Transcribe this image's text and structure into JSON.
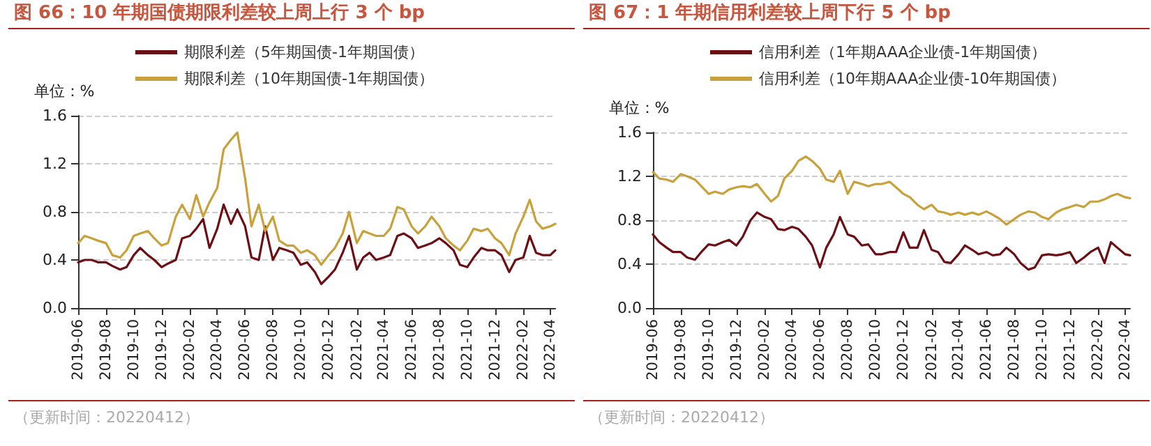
{
  "chart_data": [
    {
      "type": "line",
      "title": "图 66：10 年期国债期限利差较上周上行 3 个 bp",
      "ylabel": "单位：%",
      "annotations": [
        "（更新时间：20220412）"
      ],
      "x": [
        "2019-06-01",
        "2019-06-15",
        "2019-07-01",
        "2019-07-15",
        "2019-08-01",
        "2019-08-15",
        "2019-09-01",
        "2019-09-15",
        "2019-10-01",
        "2019-10-15",
        "2019-11-01",
        "2019-11-15",
        "2019-12-01",
        "2019-12-15",
        "2020-01-01",
        "2020-01-15",
        "2020-02-01",
        "2020-02-15",
        "2020-03-01",
        "2020-03-15",
        "2020-04-01",
        "2020-04-15",
        "2020-05-01",
        "2020-05-15",
        "2020-06-01",
        "2020-06-15",
        "2020-07-01",
        "2020-07-15",
        "2020-08-01",
        "2020-08-15",
        "2020-09-01",
        "2020-09-15",
        "2020-10-01",
        "2020-10-15",
        "2020-11-01",
        "2020-11-15",
        "2020-12-01",
        "2020-12-15",
        "2021-01-01",
        "2021-01-15",
        "2021-02-01",
        "2021-02-15",
        "2021-03-01",
        "2021-03-15",
        "2021-04-01",
        "2021-04-15",
        "2021-05-01",
        "2021-05-15",
        "2021-06-01",
        "2021-06-15",
        "2021-07-01",
        "2021-07-15",
        "2021-08-01",
        "2021-08-15",
        "2021-09-01",
        "2021-09-15",
        "2021-10-01",
        "2021-10-15",
        "2021-11-01",
        "2021-11-15",
        "2021-12-01",
        "2021-12-15",
        "2022-01-01",
        "2022-01-15",
        "2022-02-01",
        "2022-02-15",
        "2022-03-01",
        "2022-03-15",
        "2022-04-01",
        "2022-04-12"
      ],
      "series": [
        {
          "name": "期限利差（5年期国债-1年期国债）",
          "color": "#6b0f14",
          "values": [
            0.38,
            0.4,
            0.4,
            0.38,
            0.38,
            0.35,
            0.32,
            0.34,
            0.44,
            0.5,
            0.44,
            0.4,
            0.34,
            0.37,
            0.4,
            0.58,
            0.6,
            0.66,
            0.74,
            0.5,
            0.66,
            0.86,
            0.7,
            0.82,
            0.68,
            0.42,
            0.4,
            0.68,
            0.4,
            0.5,
            0.48,
            0.46,
            0.36,
            0.38,
            0.3,
            0.2,
            0.26,
            0.32,
            0.46,
            0.6,
            0.32,
            0.42,
            0.46,
            0.4,
            0.42,
            0.44,
            0.6,
            0.62,
            0.58,
            0.5,
            0.52,
            0.54,
            0.58,
            0.54,
            0.48,
            0.36,
            0.34,
            0.42,
            0.5,
            0.48,
            0.48,
            0.44,
            0.3,
            0.4,
            0.42,
            0.6,
            0.46,
            0.44,
            0.44,
            0.48
          ]
        },
        {
          "name": "期限利差（10年期国债-1年期国债）",
          "color": "#c9a13b",
          "values": [
            0.54,
            0.6,
            0.58,
            0.56,
            0.54,
            0.44,
            0.42,
            0.48,
            0.6,
            0.62,
            0.64,
            0.58,
            0.52,
            0.54,
            0.76,
            0.86,
            0.74,
            0.94,
            0.76,
            0.88,
            1.0,
            1.32,
            1.4,
            1.46,
            1.08,
            0.68,
            0.86,
            0.64,
            0.76,
            0.56,
            0.52,
            0.52,
            0.46,
            0.48,
            0.44,
            0.36,
            0.44,
            0.5,
            0.62,
            0.8,
            0.54,
            0.64,
            0.62,
            0.6,
            0.6,
            0.66,
            0.84,
            0.82,
            0.68,
            0.62,
            0.68,
            0.76,
            0.68,
            0.58,
            0.52,
            0.48,
            0.56,
            0.66,
            0.64,
            0.66,
            0.58,
            0.54,
            0.44,
            0.62,
            0.76,
            0.9,
            0.72,
            0.66,
            0.68,
            0.7
          ]
        }
      ],
      "xlim": [
        "2019-06-01",
        "2022-04-12"
      ],
      "xticks": [
        "2019-06",
        "2019-08",
        "2019-10",
        "2019-12",
        "2020-02",
        "2020-04",
        "2020-06",
        "2020-08",
        "2020-10",
        "2020-12",
        "2021-02",
        "2021-04",
        "2021-06",
        "2021-08",
        "2021-10",
        "2021-12",
        "2022-02",
        "2022-04"
      ],
      "ylim": [
        0,
        1.6
      ],
      "yticks": [
        {
          "value": 0,
          "label": "0.0"
        },
        0.4,
        0.8,
        1.2,
        1.6
      ],
      "grid": "y",
      "legend": "top",
      "marker": "none",
      "line_style": "solid"
    },
    {
      "type": "line",
      "title": "图 67：1 年期信用利差较上周下行 5 个 bp",
      "ylabel": "单位：%",
      "annotations": [
        "（更新时间：20220412）"
      ],
      "x": [
        "2019-06-01",
        "2019-06-15",
        "2019-07-01",
        "2019-07-15",
        "2019-08-01",
        "2019-08-15",
        "2019-09-01",
        "2019-09-15",
        "2019-10-01",
        "2019-10-15",
        "2019-11-01",
        "2019-11-15",
        "2019-12-01",
        "2019-12-15",
        "2020-01-01",
        "2020-01-15",
        "2020-02-01",
        "2020-02-15",
        "2020-03-01",
        "2020-03-15",
        "2020-04-01",
        "2020-04-15",
        "2020-05-01",
        "2020-05-15",
        "2020-06-01",
        "2020-06-15",
        "2020-07-01",
        "2020-07-15",
        "2020-08-01",
        "2020-08-15",
        "2020-09-01",
        "2020-09-15",
        "2020-10-01",
        "2020-10-15",
        "2020-11-01",
        "2020-11-15",
        "2020-12-01",
        "2020-12-15",
        "2021-01-01",
        "2021-01-15",
        "2021-02-01",
        "2021-02-15",
        "2021-03-01",
        "2021-03-15",
        "2021-04-01",
        "2021-04-15",
        "2021-05-01",
        "2021-05-15",
        "2021-06-01",
        "2021-06-15",
        "2021-07-01",
        "2021-07-15",
        "2021-08-01",
        "2021-08-15",
        "2021-09-01",
        "2021-09-15",
        "2021-10-01",
        "2021-10-15",
        "2021-11-01",
        "2021-11-15",
        "2021-12-01",
        "2021-12-15",
        "2022-01-01",
        "2022-01-15",
        "2022-02-01",
        "2022-02-15",
        "2022-03-01",
        "2022-03-15",
        "2022-04-01",
        "2022-04-12"
      ],
      "series": [
        {
          "name": "信用利差（1年期AAA企业债-1年期国债）",
          "color": "#6b0f14",
          "values": [
            0.67,
            0.6,
            0.55,
            0.51,
            0.51,
            0.46,
            0.44,
            0.51,
            0.58,
            0.57,
            0.6,
            0.62,
            0.57,
            0.65,
            0.8,
            0.87,
            0.83,
            0.81,
            0.72,
            0.71,
            0.74,
            0.72,
            0.65,
            0.57,
            0.37,
            0.55,
            0.67,
            0.83,
            0.67,
            0.65,
            0.57,
            0.58,
            0.49,
            0.49,
            0.51,
            0.51,
            0.69,
            0.55,
            0.55,
            0.71,
            0.53,
            0.51,
            0.42,
            0.41,
            0.49,
            0.57,
            0.53,
            0.49,
            0.51,
            0.48,
            0.49,
            0.55,
            0.49,
            0.41,
            0.35,
            0.37,
            0.48,
            0.49,
            0.48,
            0.49,
            0.51,
            0.41,
            0.46,
            0.51,
            0.55,
            0.41,
            0.6,
            0.55,
            0.49,
            0.48
          ]
        },
        {
          "name": "信用利差（10年期AAA企业债-10年期国债）",
          "color": "#c9a13b",
          "values": [
            1.24,
            1.18,
            1.17,
            1.15,
            1.22,
            1.2,
            1.17,
            1.11,
            1.04,
            1.06,
            1.04,
            1.08,
            1.1,
            1.11,
            1.1,
            1.13,
            1.04,
            0.97,
            1.02,
            1.18,
            1.25,
            1.34,
            1.38,
            1.34,
            1.27,
            1.17,
            1.15,
            1.25,
            1.04,
            1.15,
            1.13,
            1.11,
            1.13,
            1.13,
            1.15,
            1.1,
            1.04,
            1.01,
            0.94,
            0.9,
            0.94,
            0.88,
            0.87,
            0.85,
            0.87,
            0.85,
            0.87,
            0.85,
            0.88,
            0.85,
            0.81,
            0.76,
            0.81,
            0.85,
            0.88,
            0.87,
            0.83,
            0.81,
            0.87,
            0.9,
            0.92,
            0.94,
            0.92,
            0.97,
            0.97,
            0.99,
            1.02,
            1.04,
            1.01,
            1.0
          ]
        }
      ],
      "xlim": [
        "2019-06-01",
        "2022-04-12"
      ],
      "xticks": [
        "2019-06",
        "2019-08",
        "2019-10",
        "2019-12",
        "2020-02",
        "2020-04",
        "2020-06",
        "2020-08",
        "2020-10",
        "2020-12",
        "2021-02",
        "2021-04",
        "2021-06",
        "2021-08",
        "2021-10",
        "2021-12",
        "2022-02",
        "2022-04"
      ],
      "ylim": [
        0,
        1.6
      ],
      "yticks": [
        {
          "value": 0,
          "label": "0.0"
        },
        0.4,
        0.8,
        1.2,
        1.6
      ],
      "grid": "y",
      "legend": "top",
      "marker": "none",
      "line_style": "solid"
    }
  ]
}
